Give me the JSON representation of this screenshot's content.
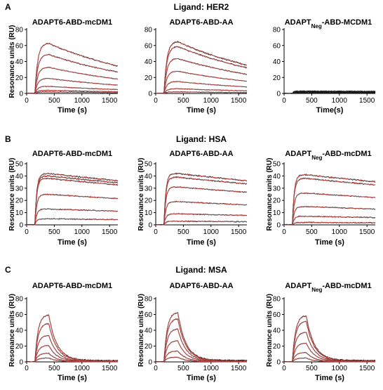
{
  "panels": [
    {
      "letter": "A",
      "ligand_title": "Ligand: HER2"
    },
    {
      "letter": "B",
      "ligand_title": "Ligand: HSA"
    },
    {
      "letter": "C",
      "ligand_title": "Ligand: MSA"
    }
  ],
  "colors": {
    "trace": "#1a1a1a",
    "fit": "#d9534f"
  },
  "chart_data": [
    {
      "type": "line",
      "panel": "A",
      "title": "ADAPT6-ABD-mcDM1",
      "title_sub": "",
      "title_rest": "",
      "xlabel": "Time (s)",
      "ylabel": "Resonance units (RU)",
      "xlim": [
        0,
        1650
      ],
      "ylim": [
        0,
        80
      ],
      "xticks": [
        0,
        500,
        1000,
        1500
      ],
      "yticks": [
        0,
        20,
        40,
        60,
        80
      ],
      "injection_start": 150,
      "injection_end": 400,
      "kinetics": "slow",
      "plateaus": [
        63,
        49,
        33,
        19,
        9,
        4,
        2
      ]
    },
    {
      "type": "line",
      "panel": "A",
      "title": "ADAPT6-ABD-AA",
      "title_sub": "",
      "title_rest": "",
      "xlabel": "Time (s)",
      "ylabel": "",
      "xlim": [
        0,
        1650
      ],
      "ylim": [
        0,
        80
      ],
      "xticks": [
        0,
        500,
        1000,
        1500
      ],
      "yticks": [
        0,
        20,
        40,
        60,
        80
      ],
      "injection_start": 150,
      "injection_end": 400,
      "kinetics": "slow",
      "plateaus": [
        65,
        59,
        44,
        28,
        15,
        6,
        2
      ]
    },
    {
      "type": "line",
      "panel": "A",
      "title": "ADAPT",
      "title_sub": "Neg",
      "title_rest": "-ABD-MCDM1",
      "xlabel": "Time(s)",
      "ylabel": "",
      "xlim": [
        0,
        1650
      ],
      "ylim": [
        0,
        80
      ],
      "xticks": [
        0,
        500,
        1000,
        1500
      ],
      "yticks": [
        0,
        20,
        40,
        60,
        80
      ],
      "injection_start": 150,
      "injection_end": 400,
      "kinetics": "flat",
      "plateaus": [
        3,
        2,
        2,
        1,
        1
      ]
    },
    {
      "type": "line",
      "panel": "B",
      "title": "ADAPT6-ABD-mcDM1",
      "title_sub": "",
      "title_rest": "",
      "xlabel": "Time (s)",
      "ylabel": "Resonance units (RU)",
      "xlim": [
        0,
        1650
      ],
      "ylim": [
        0,
        50
      ],
      "xticks": [
        0,
        500,
        1000,
        1500
      ],
      "yticks": [
        0,
        10,
        20,
        30,
        40,
        50
      ],
      "injection_start": 150,
      "injection_end": 400,
      "kinetics": "very_slow",
      "plateaus": [
        42,
        40,
        38,
        25,
        13,
        5
      ]
    },
    {
      "type": "line",
      "panel": "B",
      "title": "ADAPT6-ABD-AA",
      "title_sub": "",
      "title_rest": "",
      "xlabel": "Time (s)",
      "ylabel": "Resonance units (RU)",
      "xlim": [
        0,
        1650
      ],
      "ylim": [
        0,
        50
      ],
      "xticks": [
        0,
        500,
        1000,
        1500
      ],
      "yticks": [
        0,
        10,
        20,
        30,
        40,
        50
      ],
      "injection_start": 150,
      "injection_end": 400,
      "kinetics": "very_slow",
      "plateaus": [
        42,
        39,
        31,
        19,
        9,
        3
      ]
    },
    {
      "type": "line",
      "panel": "B",
      "title": "ADAPT",
      "title_sub": "Neg",
      "title_rest": "-ABD-mcDM1",
      "xlabel": "Time (s)",
      "ylabel": "Resonance units (RU)",
      "xlim": [
        0,
        1650
      ],
      "ylim": [
        0,
        50
      ],
      "xticks": [
        0,
        500,
        1000,
        1500
      ],
      "yticks": [
        0,
        10,
        20,
        30,
        40,
        50
      ],
      "injection_start": 150,
      "injection_end": 400,
      "kinetics": "very_slow",
      "plateaus": [
        41,
        38,
        26,
        15,
        7,
        2
      ]
    },
    {
      "type": "line",
      "panel": "C",
      "title": "ADAPT6-ABD-mcDM1",
      "title_sub": "",
      "title_rest": "",
      "xlabel": "Time (s)",
      "ylabel": "Resonance units (RU)",
      "xlim": [
        0,
        1650
      ],
      "ylim": [
        0,
        80
      ],
      "xticks": [
        0,
        500,
        1000,
        1500
      ],
      "yticks": [
        0,
        20,
        40,
        60,
        80
      ],
      "injection_start": 150,
      "injection_end": 400,
      "kinetics": "fast",
      "plateaus": [
        60,
        49,
        34,
        21,
        11,
        5
      ]
    },
    {
      "type": "line",
      "panel": "C",
      "title": "ADAPT6-ABD-AA",
      "title_sub": "",
      "title_rest": "",
      "xlabel": "Time (s)",
      "ylabel": "Resonance units (RU)",
      "xlim": [
        0,
        1650
      ],
      "ylim": [
        0,
        80
      ],
      "xticks": [
        0,
        500,
        1000,
        1500
      ],
      "yticks": [
        0,
        20,
        40,
        60,
        80
      ],
      "injection_start": 150,
      "injection_end": 400,
      "kinetics": "fast",
      "plateaus": [
        63,
        55,
        42,
        27,
        14,
        6
      ]
    },
    {
      "type": "line",
      "panel": "C",
      "title": "ADAPT",
      "title_sub": "Neg",
      "title_rest": "-ABD-mcDM1",
      "xlabel": "Time (s)",
      "ylabel": "Resonance units (RU)",
      "xlim": [
        0,
        1650
      ],
      "ylim": [
        0,
        80
      ],
      "xticks": [
        0,
        500,
        1000,
        1500
      ],
      "yticks": [
        0,
        20,
        40,
        60,
        80
      ],
      "injection_start": 150,
      "injection_end": 400,
      "kinetics": "fast",
      "plateaus": [
        59,
        52,
        38,
        24,
        12,
        5
      ]
    }
  ]
}
